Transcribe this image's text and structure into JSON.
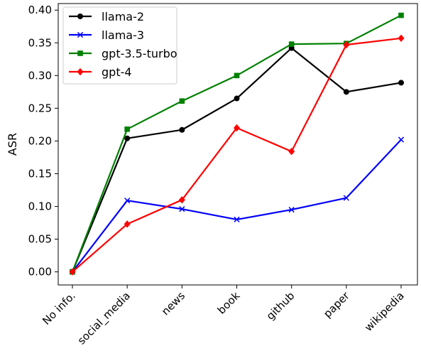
{
  "chart_data": {
    "type": "line",
    "categories": [
      "No info.",
      "social_media",
      "news",
      "book",
      "github",
      "paper",
      "wikipedia"
    ],
    "ylabel": "ASR",
    "xlabel": "",
    "ylim": [
      -0.02,
      0.41
    ],
    "yticks": [
      0.0,
      0.05,
      0.1,
      0.15,
      0.2,
      0.25,
      0.3,
      0.35,
      0.4
    ],
    "grid": false,
    "legend_position": "top-left",
    "series": [
      {
        "name": "llama-2",
        "color": "#000000",
        "marker": "circle",
        "values": [
          0.0,
          0.204,
          0.217,
          0.265,
          0.342,
          0.275,
          0.289
        ]
      },
      {
        "name": "llama-3",
        "color": "#0000ff",
        "marker": "x",
        "values": [
          0.0,
          0.109,
          0.096,
          0.08,
          0.095,
          0.113,
          0.202
        ]
      },
      {
        "name": "gpt-3.5-turbo",
        "color": "#008000",
        "marker": "square",
        "values": [
          0.0,
          0.218,
          0.261,
          0.3,
          0.348,
          0.349,
          0.392
        ]
      },
      {
        "name": "gpt-4",
        "color": "#ff0000",
        "marker": "diamond",
        "values": [
          0.0,
          0.073,
          0.11,
          0.22,
          0.184,
          0.347,
          0.357
        ]
      }
    ]
  }
}
